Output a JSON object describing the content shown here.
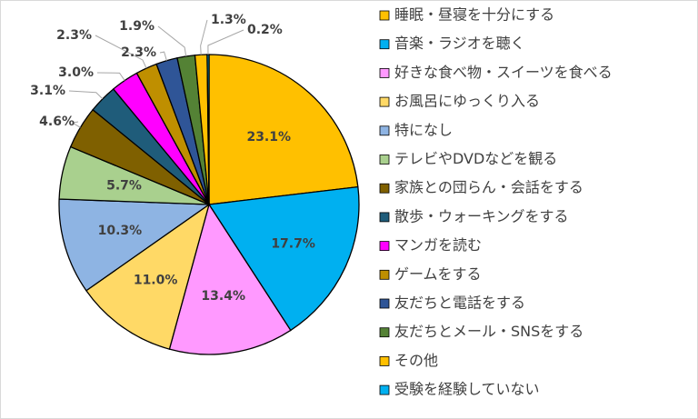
{
  "chart_data": {
    "type": "pie",
    "title": "",
    "legend_position": "right",
    "slices": [
      {
        "label": "睡眠・昼寝を十分にする",
        "value": 23.1,
        "display": "23.1%",
        "color": "#FFC000"
      },
      {
        "label": "音楽・ラジオを聴く",
        "value": 17.7,
        "display": "17.7%",
        "color": "#00B0F0"
      },
      {
        "label": "好きな食べ物・スイーツを食べる",
        "value": 13.4,
        "display": "13.4%",
        "color": "#FF99FF"
      },
      {
        "label": "お風呂にゆっくり入る",
        "value": 11.0,
        "display": "11.0%",
        "color": "#FFD966"
      },
      {
        "label": "特になし",
        "value": 10.3,
        "display": "10.3%",
        "color": "#8EB4E3"
      },
      {
        "label": "テレビやDVDなどを観る",
        "value": 5.7,
        "display": "5.7%",
        "color": "#A9D08E"
      },
      {
        "label": "家族との団らん・会話をする",
        "value": 4.6,
        "display": "4.6%",
        "color": "#7F6000"
      },
      {
        "label": "散歩・ウォーキングをする",
        "value": 3.1,
        "display": "3.1%",
        "color": "#1F5C7A"
      },
      {
        "label": "マンガを読む",
        "value": 3.0,
        "display": "3.0%",
        "color": "#FF00FF"
      },
      {
        "label": "ゲームをする",
        "value": 2.3,
        "display": "2.3%",
        "color": "#BF8F00"
      },
      {
        "label": "友だちと電話をする",
        "value": 2.3,
        "display": "2.3%",
        "color": "#2F5597"
      },
      {
        "label": "友だちとメール・SNSをする",
        "value": 1.9,
        "display": "1.9%",
        "color": "#548235"
      },
      {
        "label": "その他",
        "value": 1.3,
        "display": "1.3%",
        "color": "#FFC000"
      },
      {
        "label": "受験を経験していない",
        "value": 0.2,
        "display": "0.2%",
        "color": "#00B0F0"
      }
    ]
  }
}
